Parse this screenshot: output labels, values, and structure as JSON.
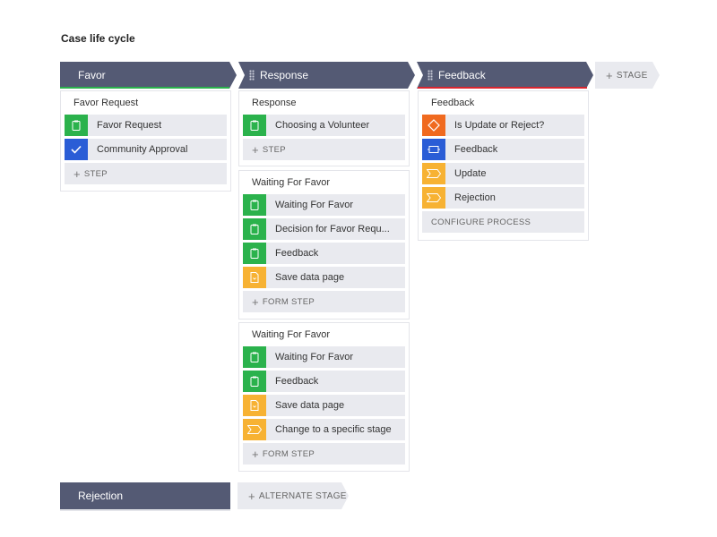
{
  "page": {
    "title": "Case life cycle"
  },
  "colors": {
    "header": "#545a74",
    "favor_bar": "#2bb24c",
    "feedback_bar": "#d9262f"
  },
  "stages": [
    {
      "name": "Favor",
      "processes": [
        {
          "title": "Favor Request",
          "steps": [
            {
              "label": "Favor Request",
              "icon": "clipboard-icon"
            },
            {
              "label": "Community Approval",
              "icon": "check-icon"
            }
          ],
          "add_label": "STEP"
        }
      ]
    },
    {
      "name": "Response",
      "processes": [
        {
          "title": "Response",
          "steps": [
            {
              "label": "Choosing a Volunteer",
              "icon": "clipboard-icon"
            }
          ],
          "add_label": "STEP"
        },
        {
          "title": "Waiting For Favor",
          "steps": [
            {
              "label": "Waiting For Favor",
              "icon": "clipboard-icon"
            },
            {
              "label": "Decision for Favor Requ...",
              "icon": "clipboard-icon"
            },
            {
              "label": "Feedback",
              "icon": "clipboard-icon"
            },
            {
              "label": "Save data page",
              "icon": "document-icon"
            }
          ],
          "add_label": "FORM STEP"
        },
        {
          "title": "Waiting For Favor",
          "steps": [
            {
              "label": "Waiting For Favor",
              "icon": "clipboard-icon"
            },
            {
              "label": "Feedback",
              "icon": "clipboard-icon"
            },
            {
              "label": "Save data page",
              "icon": "document-icon"
            },
            {
              "label": "Change to a specific stage",
              "icon": "chevron-icon"
            }
          ],
          "add_label": "FORM STEP"
        }
      ]
    },
    {
      "name": "Feedback",
      "processes": [
        {
          "title": "Feedback",
          "steps": [
            {
              "label": "Is Update or Reject?",
              "icon": "decision-icon"
            },
            {
              "label": "Feedback",
              "icon": "subprocess-icon"
            },
            {
              "label": "Update",
              "icon": "chevron-icon"
            },
            {
              "label": "Rejection",
              "icon": "chevron-icon"
            }
          ],
          "add_label": "CONFIGURE PROCESS"
        }
      ]
    }
  ],
  "add_stage_label": "STAGE",
  "alternate": {
    "stage_name": "Rejection",
    "add_label": "ALTERNATE STAGE"
  }
}
